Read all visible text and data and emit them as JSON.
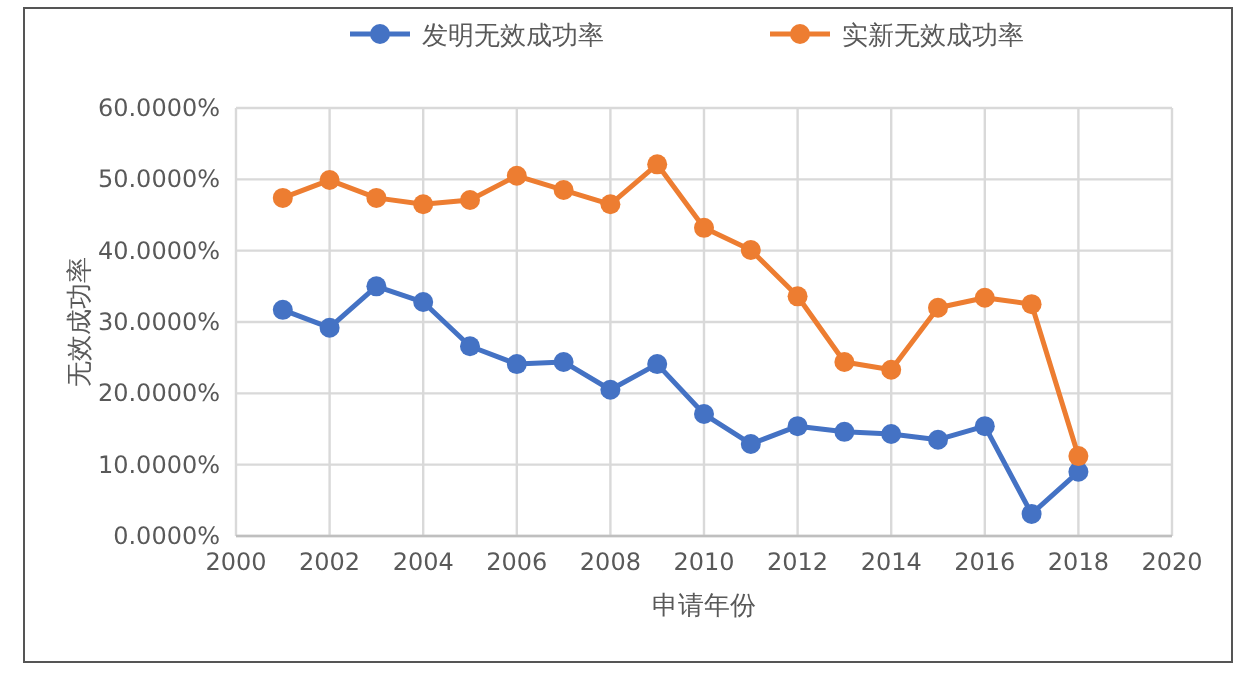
{
  "chart_data": {
    "type": "line",
    "xlabel": "申请年份",
    "ylabel": "无效成功率",
    "x": [
      2001,
      2002,
      2003,
      2004,
      2005,
      2006,
      2007,
      2008,
      2009,
      2010,
      2011,
      2012,
      2013,
      2014,
      2015,
      2016,
      2017,
      2018
    ],
    "series": [
      {
        "name": "发明无效成功率",
        "color": "#4472c4",
        "values": [
          31.7,
          29.2,
          35.0,
          32.8,
          26.6,
          24.1,
          24.4,
          20.5,
          24.1,
          17.1,
          12.9,
          15.4,
          14.6,
          14.3,
          13.5,
          15.4,
          3.1,
          9.0
        ]
      },
      {
        "name": "实新无效成功率",
        "color": "#ed7d31",
        "values": [
          47.4,
          49.9,
          47.4,
          46.5,
          47.1,
          50.5,
          48.5,
          46.5,
          52.1,
          43.2,
          40.1,
          33.6,
          24.4,
          23.3,
          32.0,
          33.4,
          32.5,
          11.2
        ]
      }
    ],
    "xlim": [
      2000,
      2020
    ],
    "xticks": [
      2000,
      2002,
      2004,
      2006,
      2008,
      2010,
      2012,
      2014,
      2016,
      2018,
      2020
    ],
    "ylim": [
      0,
      60
    ],
    "yticks": [
      {
        "value": 0,
        "label": "0.0000%"
      },
      {
        "value": 10,
        "label": "10.0000%"
      },
      {
        "value": 20,
        "label": "20.0000%"
      },
      {
        "value": 30,
        "label": "30.0000%"
      },
      {
        "value": 40,
        "label": "40.0000%"
      },
      {
        "value": 50,
        "label": "50.0000%"
      },
      {
        "value": 60,
        "label": "60.0000%"
      }
    ],
    "grid": true,
    "legend": "top",
    "marker": "circle",
    "line_style": "solid"
  }
}
